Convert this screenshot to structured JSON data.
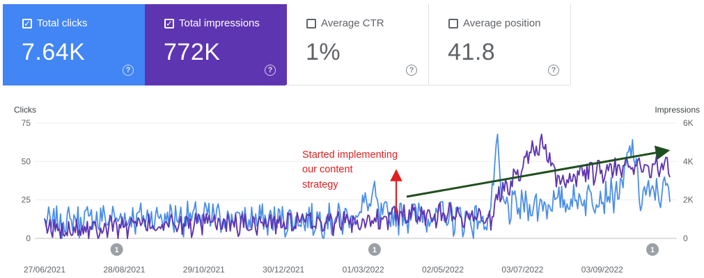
{
  "metrics": {
    "clicks": {
      "label": "Total clicks",
      "value": "7.64K",
      "checked": true
    },
    "impressions": {
      "label": "Total impressions",
      "value": "772K",
      "checked": true
    },
    "ctr": {
      "label": "Average CTR",
      "value": "1%",
      "checked": false
    },
    "position": {
      "label": "Average position",
      "value": "41.8",
      "checked": false
    }
  },
  "colors": {
    "clicks": "#4a8ee8",
    "impressions": "#5e35b1",
    "annotation": "#e02020",
    "trend_arrow": "#1f4f1f"
  },
  "annotation_text": [
    "Started implementing",
    "our content",
    "strategy"
  ],
  "marker_label": "1",
  "chart_data": {
    "type": "line",
    "left_axis_title": "Clicks",
    "right_axis_title": "Impressions",
    "y_left_ticks": [
      "75",
      "50",
      "25",
      "0"
    ],
    "y_right_ticks": [
      "6K",
      "4K",
      "2K",
      "0"
    ],
    "ylim_left": [
      0,
      75
    ],
    "ylim_right": [
      0,
      6000
    ],
    "x_start": "2021-06-27",
    "x_end": "2022-10-08",
    "x_tick_labels": [
      "27/06/2021",
      "28/08/2021",
      "29/10/2021",
      "30/12/2021",
      "01/03/2022",
      "02/05/2022",
      "03/07/2022",
      "03/09/2022"
    ],
    "annotation_markers": [
      "2021-08-20",
      "2022-03-01",
      "2022-09-25"
    ],
    "series": [
      {
        "name": "Clicks",
        "axis": "left",
        "keypoints": [
          [
            "2021-06-27",
            10
          ],
          [
            "2021-08-01",
            13
          ],
          [
            "2021-09-15",
            14
          ],
          [
            "2021-11-01",
            14
          ],
          [
            "2021-12-15",
            12
          ],
          [
            "2022-02-10",
            13
          ],
          [
            "2022-03-01",
            27
          ],
          [
            "2022-03-05",
            14
          ],
          [
            "2022-04-01",
            16
          ],
          [
            "2022-05-01",
            14
          ],
          [
            "2022-05-25",
            11
          ],
          [
            "2022-06-01",
            58
          ],
          [
            "2022-06-05",
            20
          ],
          [
            "2022-07-01",
            22
          ],
          [
            "2022-08-01",
            26
          ],
          [
            "2022-09-01",
            30
          ],
          [
            "2022-09-10",
            63
          ],
          [
            "2022-09-15",
            28
          ],
          [
            "2022-10-08",
            32
          ]
        ],
        "amplitude": 9
      },
      {
        "name": "Impressions",
        "axis": "right",
        "keypoints": [
          [
            "2021-06-27",
            500
          ],
          [
            "2021-09-01",
            700
          ],
          [
            "2021-11-01",
            750
          ],
          [
            "2022-01-01",
            800
          ],
          [
            "2022-02-15",
            900
          ],
          [
            "2022-03-15",
            1200
          ],
          [
            "2022-05-01",
            1300
          ],
          [
            "2022-05-28",
            1100
          ],
          [
            "2022-06-03",
            2500
          ],
          [
            "2022-06-10",
            2700
          ],
          [
            "2022-06-25",
            4600
          ],
          [
            "2022-07-05",
            4900
          ],
          [
            "2022-07-15",
            3000
          ],
          [
            "2022-08-01",
            3300
          ],
          [
            "2022-09-01",
            3700
          ],
          [
            "2022-10-08",
            3800
          ]
        ],
        "amplitude": 500
      }
    ]
  }
}
